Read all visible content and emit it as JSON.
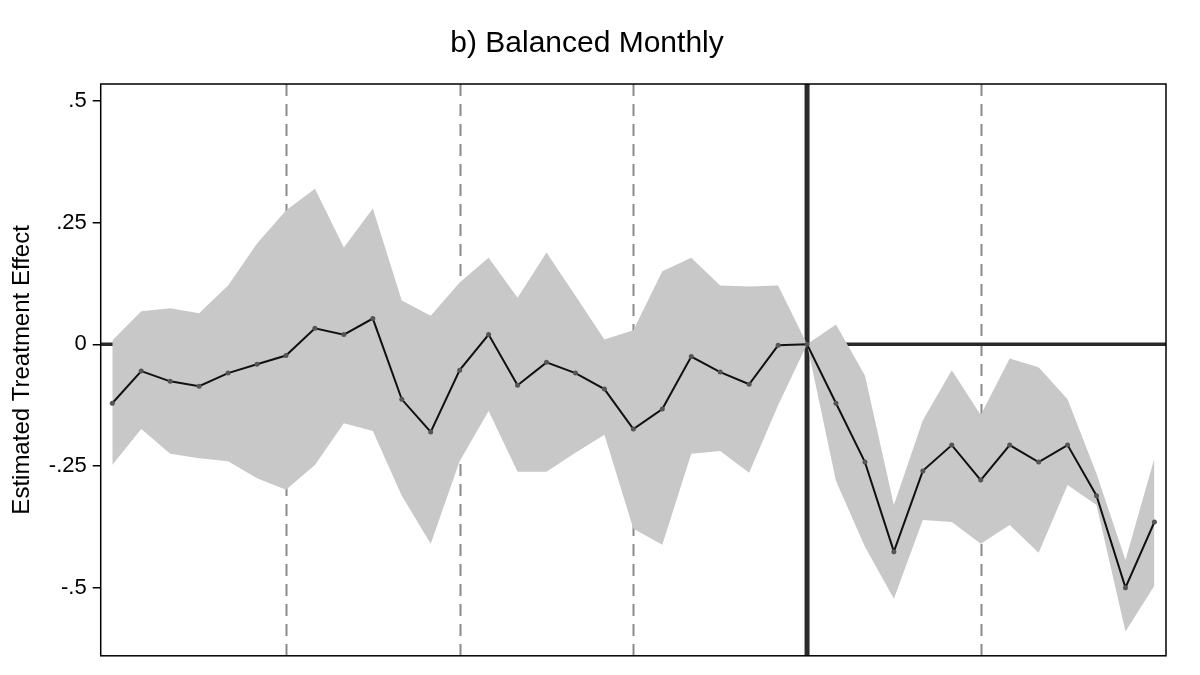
{
  "chart_data": {
    "type": "line",
    "title": "b) Balanced Monthly",
    "y_label": "Estimated Treatment Effect",
    "x": [
      -24,
      -23,
      -22,
      -21,
      -20,
      -19,
      -18,
      -17,
      -16,
      -15,
      -14,
      -13,
      -12,
      -11,
      -10,
      -9,
      -8,
      -7,
      -6,
      -5,
      -4,
      -3,
      -2,
      -1,
      0,
      1,
      2,
      3,
      4,
      5,
      6,
      7,
      8,
      9,
      10,
      11,
      12
    ],
    "series": [
      {
        "color": "#111111",
        "marker": "circle",
        "values": [
          -0.121,
          -0.055,
          -0.076,
          -0.086,
          -0.059,
          -0.041,
          -0.023,
          0.033,
          0.02,
          0.053,
          -0.113,
          -0.18,
          -0.053,
          0.02,
          -0.084,
          -0.037,
          -0.059,
          -0.092,
          -0.174,
          -0.133,
          -0.025,
          -0.057,
          -0.082,
          -0.002,
          0,
          -0.121,
          -0.242,
          -0.426,
          -0.26,
          -0.207,
          -0.279,
          -0.207,
          -0.242,
          -0.207,
          -0.311,
          -0.5,
          -0.365
        ],
        "ci_upper": [
          0.008,
          0.068,
          0.074,
          0.064,
          0.121,
          0.207,
          0.275,
          0.32,
          0.199,
          0.279,
          0.09,
          0.059,
          0.127,
          0.178,
          0.096,
          0.189,
          0.1,
          0.01,
          0.029,
          0.15,
          0.178,
          0.121,
          0.119,
          0.121,
          0,
          0.041,
          -0.064,
          -0.33,
          -0.156,
          -0.053,
          -0.145,
          -0.029,
          -0.047,
          -0.113,
          -0.266,
          -0.443,
          -0.234
        ],
        "ci_lower": [
          -0.248,
          -0.174,
          -0.225,
          -0.234,
          -0.24,
          -0.275,
          -0.299,
          -0.248,
          -0.162,
          -0.178,
          -0.311,
          -0.41,
          -0.24,
          -0.137,
          -0.262,
          -0.262,
          -0.223,
          -0.186,
          -0.379,
          -0.412,
          -0.225,
          -0.219,
          -0.264,
          -0.125,
          0,
          -0.281,
          -0.416,
          -0.523,
          -0.361,
          -0.365,
          -0.41,
          -0.371,
          -0.428,
          -0.289,
          -0.33,
          -0.59,
          -0.496
        ],
        "ci_color": "#c8c8c8"
      }
    ],
    "xlim": [
      -24.4,
      12.4
    ],
    "xticks": [
      -18,
      -12,
      -6,
      6
    ],
    "ylim": [
      -0.64,
      0.535
    ],
    "yticks": [
      {
        "value": -0.5,
        "label": "-.5"
      },
      {
        "value": -0.25,
        "label": "-.25"
      },
      0,
      {
        "value": 0.25,
        "label": ".25"
      },
      {
        "value": 0.5,
        "label": ".5"
      }
    ],
    "vline": 0,
    "hline": 0,
    "grid": true,
    "tick_labels": "y"
  }
}
